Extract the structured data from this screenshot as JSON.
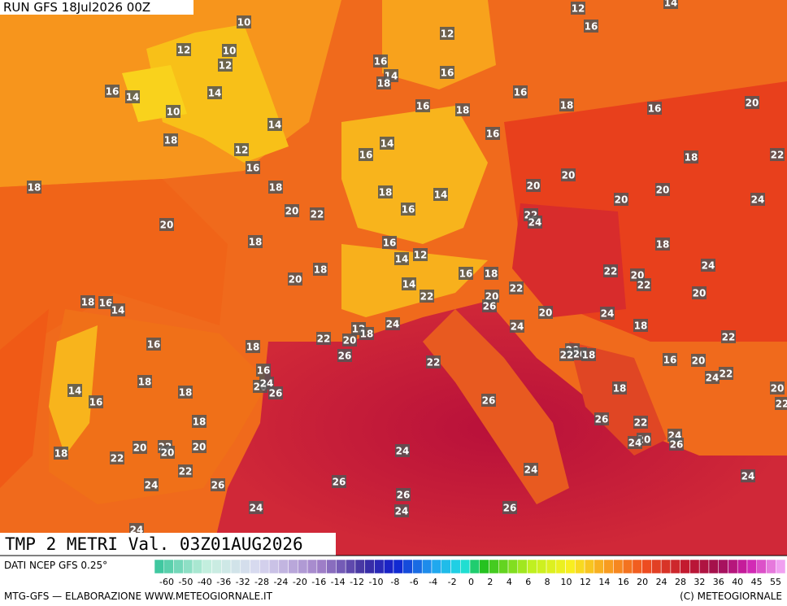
{
  "header": {
    "run": "RUN GFS 18Jul2026 00Z"
  },
  "map": {
    "labels": [
      12,
      14,
      10,
      12,
      16,
      12,
      10,
      12,
      16,
      14,
      16,
      18,
      16,
      14,
      14,
      10,
      16,
      18,
      16,
      20,
      16,
      18,
      14,
      16,
      18,
      12,
      14,
      16,
      18,
      22,
      16,
      20,
      18,
      18,
      20,
      20,
      20,
      24,
      18,
      14,
      16,
      20,
      22,
      22,
      24,
      20,
      18,
      18,
      16,
      14,
      12,
      24,
      18,
      22,
      20,
      22,
      16,
      18,
      20,
      22,
      14,
      22,
      20,
      20,
      26,
      18,
      16,
      14,
      20,
      24,
      24,
      18,
      24,
      12,
      18,
      22,
      20,
      16,
      18,
      22,
      20,
      20,
      18,
      22,
      16,
      26,
      22,
      16,
      20,
      22,
      24,
      20,
      24,
      18,
      26,
      14,
      16,
      18,
      18,
      20,
      22,
      26,
      18,
      26,
      22,
      24,
      20,
      24,
      26,
      20,
      22,
      20,
      20,
      22,
      18,
      24,
      22,
      24,
      24,
      24,
      26,
      26,
      26,
      24,
      26,
      24,
      24
    ]
  },
  "footer": {
    "title": "TMP 2 METRI Val. 03Z01AUG2026",
    "source": "DATI NCEP GFS 0.25°",
    "credit": "MTG-GFS — ELABORAZIONE WWW.METEOGIORNALE.IT",
    "copyright": "(C) METEOGIORNALE"
  },
  "colorbar": {
    "labels": [
      -60,
      -50,
      -40,
      -36,
      -32,
      -28,
      -24,
      -20,
      -16,
      -14,
      -12,
      -10,
      -8,
      -6,
      -4,
      -2,
      0,
      2,
      4,
      6,
      8,
      10,
      12,
      14,
      16,
      20,
      24,
      28,
      32,
      36,
      40,
      45,
      55
    ]
  }
}
